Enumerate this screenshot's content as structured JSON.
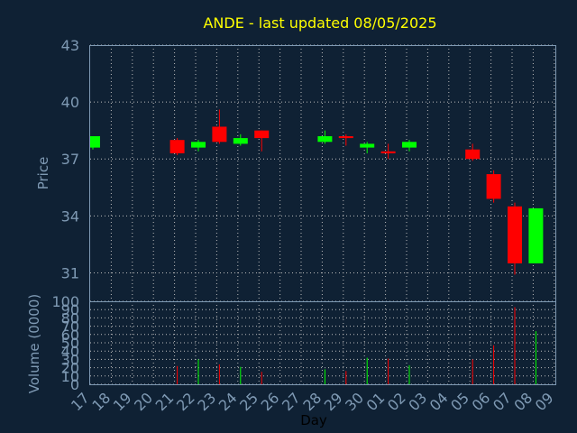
{
  "chart_data": {
    "type": "candlestick",
    "title": "ANDE - last updated 08/05/2025",
    "ylabel": "Price",
    "volume_label": "Volume (0000)",
    "xlabel": "Day",
    "grid": true,
    "colors": {
      "background": "#0f2134",
      "text": "#7f9ab4",
      "title": "#ffff00",
      "up": "#00ff00",
      "down": "#ff0000",
      "grid": "#bbbbbb"
    },
    "price_ylim": [
      29.5,
      43
    ],
    "price_ticks": [
      31,
      34,
      37,
      40,
      43
    ],
    "volume_ylim": [
      0,
      100
    ],
    "volume_ticks": [
      0,
      10,
      20,
      30,
      40,
      50,
      60,
      70,
      80,
      90,
      100
    ],
    "x_ticks": [
      "17",
      "18",
      "19",
      "20",
      "21",
      "22",
      "23",
      "24",
      "25",
      "26",
      "27",
      "28",
      "29",
      "30",
      "01",
      "02",
      "03",
      "04",
      "05",
      "06",
      "07",
      "08",
      "09"
    ],
    "candles": [
      {
        "day": "17",
        "open": 37.6,
        "close": 38.2,
        "high": 38.2,
        "low": 37.5,
        "volume": 0
      },
      {
        "day": "21",
        "open": 38.0,
        "close": 37.3,
        "high": 38.1,
        "low": 37.2,
        "volume": 22
      },
      {
        "day": "22",
        "open": 37.6,
        "close": 37.9,
        "high": 38.0,
        "low": 37.4,
        "volume": 30
      },
      {
        "day": "23",
        "open": 38.7,
        "close": 37.9,
        "high": 39.6,
        "low": 37.8,
        "volume": 24
      },
      {
        "day": "24",
        "open": 37.8,
        "close": 38.1,
        "high": 38.3,
        "low": 37.7,
        "volume": 21
      },
      {
        "day": "25",
        "open": 38.5,
        "close": 38.1,
        "high": 38.5,
        "low": 37.4,
        "volume": 15
      },
      {
        "day": "28",
        "open": 37.9,
        "close": 38.2,
        "high": 38.5,
        "low": 37.8,
        "volume": 18
      },
      {
        "day": "29",
        "open": 38.2,
        "close": 38.1,
        "high": 38.3,
        "low": 37.7,
        "volume": 16
      },
      {
        "day": "30",
        "open": 37.6,
        "close": 37.8,
        "high": 37.9,
        "low": 37.3,
        "volume": 32
      },
      {
        "day": "01",
        "open": 37.4,
        "close": 37.3,
        "high": 37.8,
        "low": 37.0,
        "volume": 31
      },
      {
        "day": "02",
        "open": 37.6,
        "close": 37.9,
        "high": 38.0,
        "low": 37.4,
        "volume": 23
      },
      {
        "day": "05",
        "open": 37.5,
        "close": 37.0,
        "high": 37.8,
        "low": 36.9,
        "volume": 30
      },
      {
        "day": "06",
        "open": 36.2,
        "close": 34.9,
        "high": 36.4,
        "low": 34.7,
        "volume": 47
      },
      {
        "day": "07",
        "open": 34.5,
        "close": 31.5,
        "high": 34.7,
        "low": 30.9,
        "volume": 93
      },
      {
        "day": "08",
        "open": 31.5,
        "close": 34.4,
        "high": 34.4,
        "low": 31.5,
        "volume": 64
      }
    ]
  }
}
